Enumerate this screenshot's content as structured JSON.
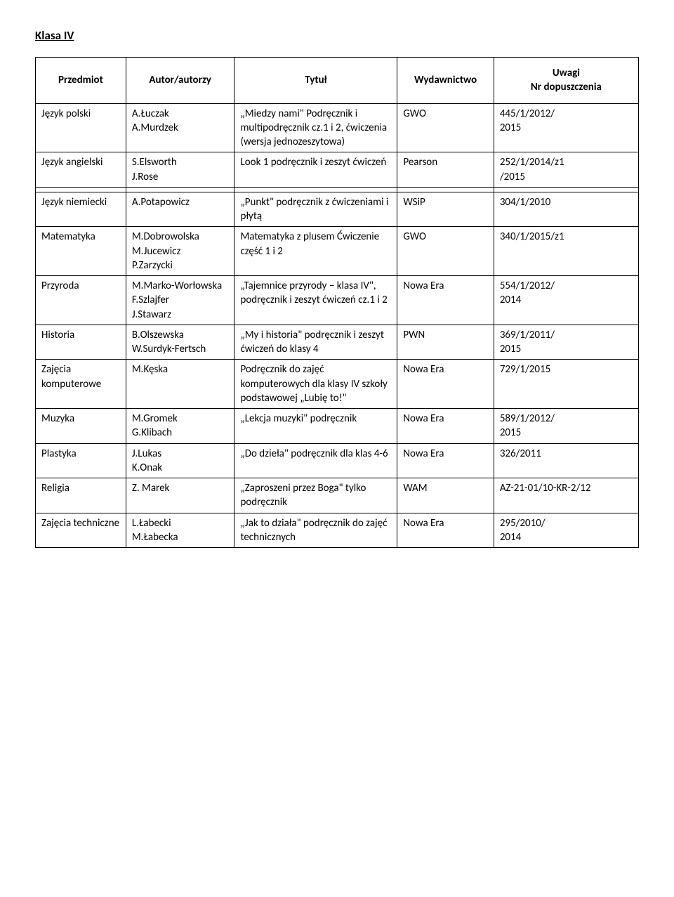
{
  "page_title": "Klasa IV",
  "columns": [
    "Przedmiot",
    "Autor/autorzy",
    "Tytuł",
    "Wydawnictwo",
    "Uwagi\nNr dopuszczenia"
  ],
  "rows": [
    {
      "subject": "Język polski",
      "authors": "A.Łuczak\nA.Murdzek",
      "title": "„Miedzy nami\" Podręcznik i multipodręcznik cz.1 i 2, ćwiczenia (wersja jednozeszytowa)",
      "publisher": "GWO",
      "notes": "445/1/2012/\n2015"
    },
    {
      "subject": "Język angielski",
      "authors": "S.Elsworth\nJ.Rose",
      "title": "Look 1 podręcznik i zeszyt ćwiczeń",
      "publisher": "Pearson",
      "notes": "252/1/2014/z1\n/2015"
    },
    {
      "spacer": true
    },
    {
      "subject": "Język niemiecki",
      "authors": "A.Potapowicz",
      "title": "„Punkt\" podręcznik z ćwiczeniami i płytą",
      "publisher": "WSiP",
      "notes": "304/1/2010"
    },
    {
      "subject": "Matematyka",
      "authors": "M.Dobrowolska\nM.Jucewicz\nP.Zarzycki",
      "title": "Matematyka z plusem Ćwiczenie część 1 i 2",
      "publisher": "GWO",
      "notes": "340/1/2015/z1"
    },
    {
      "subject": "Przyroda",
      "authors": "M.Marko-Worłowska\nF.Szlajfer\nJ.Stawarz",
      "title": "„Tajemnice przyrody – klasa IV\", podręcznik i zeszyt ćwiczeń cz.1 i 2",
      "publisher": "Nowa Era",
      "notes": "554/1/2012/\n2014"
    },
    {
      "subject": "Historia",
      "authors": "B.Olszewska\nW.Surdyk-Fertsch",
      "title": "„My i historia\" podręcznik i zeszyt ćwiczeń do klasy 4",
      "publisher": "PWN",
      "notes": "369/1/2011/\n2015"
    },
    {
      "subject": "Zajęcia komputerowe",
      "authors": "M.Kęska",
      "title": "Podręcznik do zajęć komputerowych dla klasy IV szkoły podstawowej „Lubię to!\"",
      "publisher": "Nowa Era",
      "notes": "729/1/2015"
    },
    {
      "subject": "Muzyka",
      "authors": "M.Gromek\nG.Klibach",
      "title": "„Lekcja muzyki\" podręcznik",
      "publisher": "Nowa Era",
      "notes": "589/1/2012/\n2015"
    },
    {
      "subject": "Plastyka",
      "authors": "J.Lukas\nK.Onak",
      "title": "„Do dzieła\" podręcznik dla klas 4-6",
      "publisher": "Nowa Era",
      "notes": "326/2011"
    },
    {
      "subject": "Religia",
      "authors": "Z. Marek",
      "title": "„Zaproszeni przez Boga\" tylko podręcznik",
      "publisher": "WAM",
      "notes": "AZ-21-01/10-KR-2/12"
    },
    {
      "subject": "Zajęcia techniczne",
      "authors": "L.Łabecki\nM.Łabecka",
      "title": "„Jak to działa\" podręcznik do zajęć technicznych",
      "publisher": "Nowa Era",
      "notes": "295/2010/\n2014"
    }
  ]
}
